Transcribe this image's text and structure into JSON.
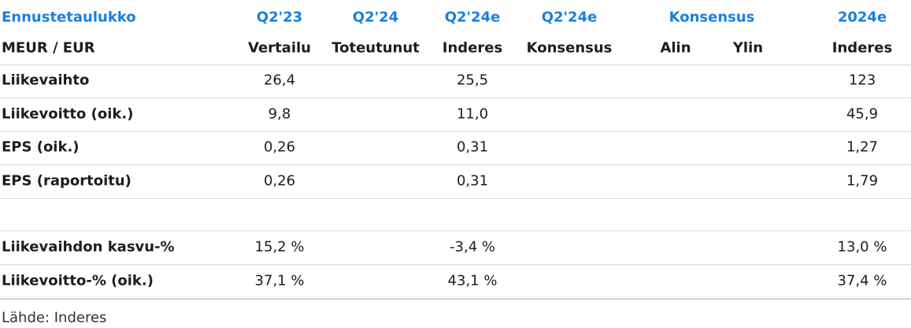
{
  "table": {
    "title": "Ennustetaulukko",
    "group_header": [
      "Q2'23",
      "Q2'24",
      "Q2'24e",
      "Q2'24e",
      "Konsensus",
      "2024e"
    ],
    "sub_header": [
      "MEUR / EUR",
      "Vertailu",
      "Toteutunut",
      "Inderes",
      "Konsensus",
      "Alin",
      "Ylin",
      "Inderes"
    ],
    "sections": [
      [
        [
          "Liikevaihto",
          "26,4",
          null,
          "25,5",
          null,
          null,
          null,
          "123"
        ],
        [
          "Liikevoitto (oik.)",
          "9,8",
          null,
          "11,0",
          null,
          null,
          null,
          "45,9"
        ],
        [
          "EPS (oik.)",
          "0,26",
          null,
          "0,31",
          null,
          null,
          null,
          "1,27"
        ],
        [
          "EPS (raportoitu)",
          "0,26",
          null,
          "0,31",
          null,
          null,
          null,
          "1,79"
        ]
      ],
      [
        [
          "Liikevaihdon kasvu-%",
          "15,2 %",
          null,
          "-3,4 %",
          null,
          null,
          null,
          "13,0 %"
        ],
        [
          "Liikevoitto-% (oik.)",
          "37,1 %",
          null,
          "43,1 %",
          null,
          null,
          null,
          "37,4 %"
        ]
      ]
    ],
    "source": "Lähde: Inderes"
  }
}
